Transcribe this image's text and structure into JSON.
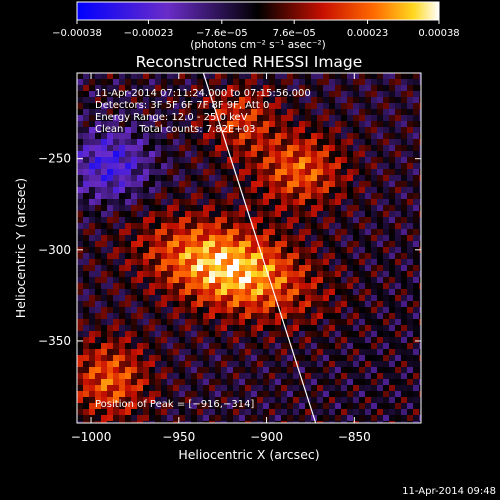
{
  "chart_data": {
    "type": "heatmap",
    "title": "Reconstructed RHESSI Image",
    "xlabel": "Heliocentric X (arcsec)",
    "ylabel": "Heliocentric Y (arcsec)",
    "xlim": [
      -1008,
      -812
    ],
    "ylim": [
      -395,
      -203
    ],
    "x_ticks": [
      -1000,
      -950,
      -900,
      -850
    ],
    "x_tick_labels": [
      "−1000",
      "−950",
      "−900",
      "−850"
    ],
    "y_ticks": [
      -250,
      -300,
      -350
    ],
    "y_tick_labels": [
      "−250",
      "−300",
      "−350"
    ],
    "colorbar": {
      "min": -0.00038,
      "max": 0.00038,
      "ticks": [
        -0.00038,
        -0.00023,
        -7.6e-05,
        7.6e-05,
        0.00023,
        0.00038
      ],
      "tick_labels": [
        "−0.00038",
        "−0.00023",
        "−7.6e−05",
        "7.6e−05",
        "0.00023",
        "0.00038"
      ],
      "unit_label": "(photons cm⁻² s⁻¹ asec⁻²)",
      "colors": [
        "#0000ff",
        "#6a2cc8",
        "#000000",
        "#c81000",
        "#ff6a00",
        "#ffd820",
        "#ffffff"
      ]
    },
    "annotations": [
      "11-Apr-2014 07:11:24.000 to 07:15:56.000",
      "Detectors: 3F 5F 6F 7F 8F 9F, Att 0",
      "Energy Range: 12.0 - 25.0 keV",
      "Clean     Total counts: 7.82E+03"
    ],
    "peak_label": "Position of Peak = [−916,−314]",
    "peak": [
      -916,
      -314
    ],
    "limb_line": [
      [
        -937,
        -200
      ],
      [
        -872,
        -395
      ]
    ]
  },
  "footer": {
    "timestamp": "11-Apr-2014 09:48"
  }
}
